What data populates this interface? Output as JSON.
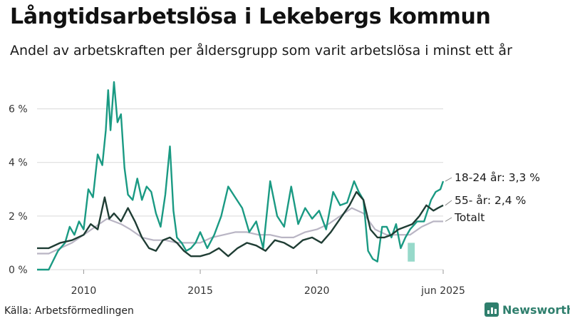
{
  "title": "Långtidsarbetslösa i Lekebergs kommun",
  "subtitle": "Andel av arbetskraften per åldersgrupp som varit arbetslösa i minst ett år",
  "source": "Källa: Arbetsförmedlingen",
  "brand": {
    "name": "Newsworthy",
    "icon": "newsworthy-logo-icon"
  },
  "colors": {
    "youth": "#1a9a83",
    "senior": "#1f3d34",
    "total": "#b9b5c4",
    "band": "#7dcfbd",
    "grid": "#d9d9d9"
  },
  "chart_data": {
    "type": "line",
    "title": "Långtidsarbetslösa i Lekebergs kommun",
    "xlabel": "",
    "ylabel": "",
    "xlim": [
      2008.0,
      2025.42
    ],
    "ylim": [
      0,
      7
    ],
    "y_ticks": [
      {
        "value": 0,
        "label": "0 %"
      },
      {
        "value": 2,
        "label": "2 %"
      },
      {
        "value": 4,
        "label": "4 %"
      },
      {
        "value": 6,
        "label": "6 %"
      }
    ],
    "x_ticks": [
      {
        "value": 2010,
        "label": "2010"
      },
      {
        "value": 2015,
        "label": "2015"
      },
      {
        "value": 2020,
        "label": "2020"
      },
      {
        "value": 2025.42,
        "label": "jun 2025"
      }
    ],
    "shaded_band": {
      "x": [
        2023.9,
        2024.2
      ],
      "y_low": 0.3,
      "y_high": 1.0
    },
    "series": [
      {
        "name": "18-24 år",
        "end_label": "18-24 år: 3,3 %",
        "color": "#1a9a83",
        "x": [
          2008.0,
          2008.5,
          2008.9,
          2009.2,
          2009.4,
          2009.6,
          2009.8,
          2010.0,
          2010.2,
          2010.4,
          2010.6,
          2010.8,
          2010.95,
          2011.05,
          2011.15,
          2011.3,
          2011.45,
          2011.6,
          2011.75,
          2011.9,
          2012.1,
          2012.3,
          2012.5,
          2012.7,
          2012.9,
          2013.1,
          2013.3,
          2013.5,
          2013.7,
          2013.85,
          2014.0,
          2014.2,
          2014.4,
          2014.6,
          2014.8,
          2015.0,
          2015.3,
          2015.6,
          2015.9,
          2016.2,
          2016.5,
          2016.8,
          2017.1,
          2017.4,
          2017.7,
          2018.0,
          2018.3,
          2018.6,
          2018.9,
          2019.2,
          2019.5,
          2019.8,
          2020.1,
          2020.4,
          2020.7,
          2021.0,
          2021.3,
          2021.6,
          2021.8,
          2022.0,
          2022.2,
          2022.4,
          2022.6,
          2022.8,
          2023.0,
          2023.2,
          2023.4,
          2023.6,
          2023.8,
          2024.0,
          2024.3,
          2024.6,
          2024.9,
          2025.1,
          2025.3,
          2025.42
        ],
        "values": [
          0.0,
          0.0,
          0.7,
          1.0,
          1.6,
          1.3,
          1.8,
          1.5,
          3.0,
          2.7,
          4.3,
          3.9,
          5.2,
          6.7,
          5.2,
          7.0,
          5.5,
          5.8,
          3.8,
          2.8,
          2.6,
          3.4,
          2.6,
          3.1,
          2.9,
          2.1,
          1.6,
          2.8,
          4.6,
          2.2,
          1.2,
          1.0,
          0.7,
          0.8,
          1.0,
          1.4,
          0.8,
          1.3,
          2.0,
          3.1,
          2.7,
          2.3,
          1.4,
          1.8,
          0.8,
          3.3,
          2.0,
          1.6,
          3.1,
          1.7,
          2.3,
          1.9,
          2.2,
          1.5,
          2.9,
          2.4,
          2.5,
          3.3,
          2.9,
          2.6,
          0.7,
          0.4,
          0.3,
          1.6,
          1.6,
          1.2,
          1.7,
          0.8,
          1.2,
          1.5,
          1.8,
          1.8,
          2.6,
          2.9,
          3.0,
          3.3
        ]
      },
      {
        "name": "55- år",
        "end_label": "55- år: 2,4 %",
        "color": "#1f3d34",
        "x": [
          2008.0,
          2008.5,
          2009.0,
          2009.5,
          2010.0,
          2010.3,
          2010.6,
          2010.9,
          2011.1,
          2011.3,
          2011.6,
          2011.9,
          2012.2,
          2012.5,
          2012.8,
          2013.1,
          2013.4,
          2013.7,
          2014.0,
          2014.3,
          2014.6,
          2015.0,
          2015.4,
          2015.8,
          2016.2,
          2016.6,
          2017.0,
          2017.4,
          2017.8,
          2018.2,
          2018.6,
          2019.0,
          2019.4,
          2019.8,
          2020.2,
          2020.6,
          2021.0,
          2021.4,
          2021.7,
          2022.0,
          2022.3,
          2022.6,
          2022.9,
          2023.2,
          2023.5,
          2023.8,
          2024.1,
          2024.4,
          2024.7,
          2025.0,
          2025.2,
          2025.42
        ],
        "values": [
          0.8,
          0.8,
          1.0,
          1.1,
          1.3,
          1.7,
          1.5,
          2.7,
          1.9,
          2.1,
          1.8,
          2.3,
          1.8,
          1.2,
          0.8,
          0.7,
          1.1,
          1.2,
          1.0,
          0.7,
          0.5,
          0.5,
          0.6,
          0.8,
          0.5,
          0.8,
          1.0,
          0.9,
          0.7,
          1.1,
          1.0,
          0.8,
          1.1,
          1.2,
          1.0,
          1.4,
          1.9,
          2.4,
          2.9,
          2.6,
          1.5,
          1.2,
          1.2,
          1.3,
          1.5,
          1.6,
          1.7,
          2.0,
          2.4,
          2.2,
          2.3,
          2.4
        ]
      },
      {
        "name": "Totalt",
        "end_label": "Totalt",
        "color": "#b9b5c4",
        "x": [
          2008.0,
          2008.5,
          2009.0,
          2009.5,
          2010.0,
          2010.5,
          2011.0,
          2011.3,
          2011.6,
          2012.0,
          2012.5,
          2013.0,
          2013.5,
          2014.0,
          2014.5,
          2015.0,
          2015.5,
          2016.0,
          2016.5,
          2017.0,
          2017.5,
          2018.0,
          2018.5,
          2019.0,
          2019.5,
          2020.0,
          2020.5,
          2021.0,
          2021.5,
          2022.0,
          2022.5,
          2023.0,
          2023.5,
          2024.0,
          2024.5,
          2025.0,
          2025.42
        ],
        "values": [
          0.6,
          0.6,
          0.8,
          1.0,
          1.3,
          1.6,
          1.9,
          1.8,
          1.7,
          1.5,
          1.2,
          1.1,
          1.1,
          1.0,
          1.0,
          1.0,
          1.2,
          1.3,
          1.4,
          1.4,
          1.3,
          1.3,
          1.2,
          1.2,
          1.4,
          1.5,
          1.7,
          2.0,
          2.3,
          2.1,
          1.5,
          1.3,
          1.3,
          1.3,
          1.6,
          1.8,
          1.8
        ]
      }
    ]
  }
}
